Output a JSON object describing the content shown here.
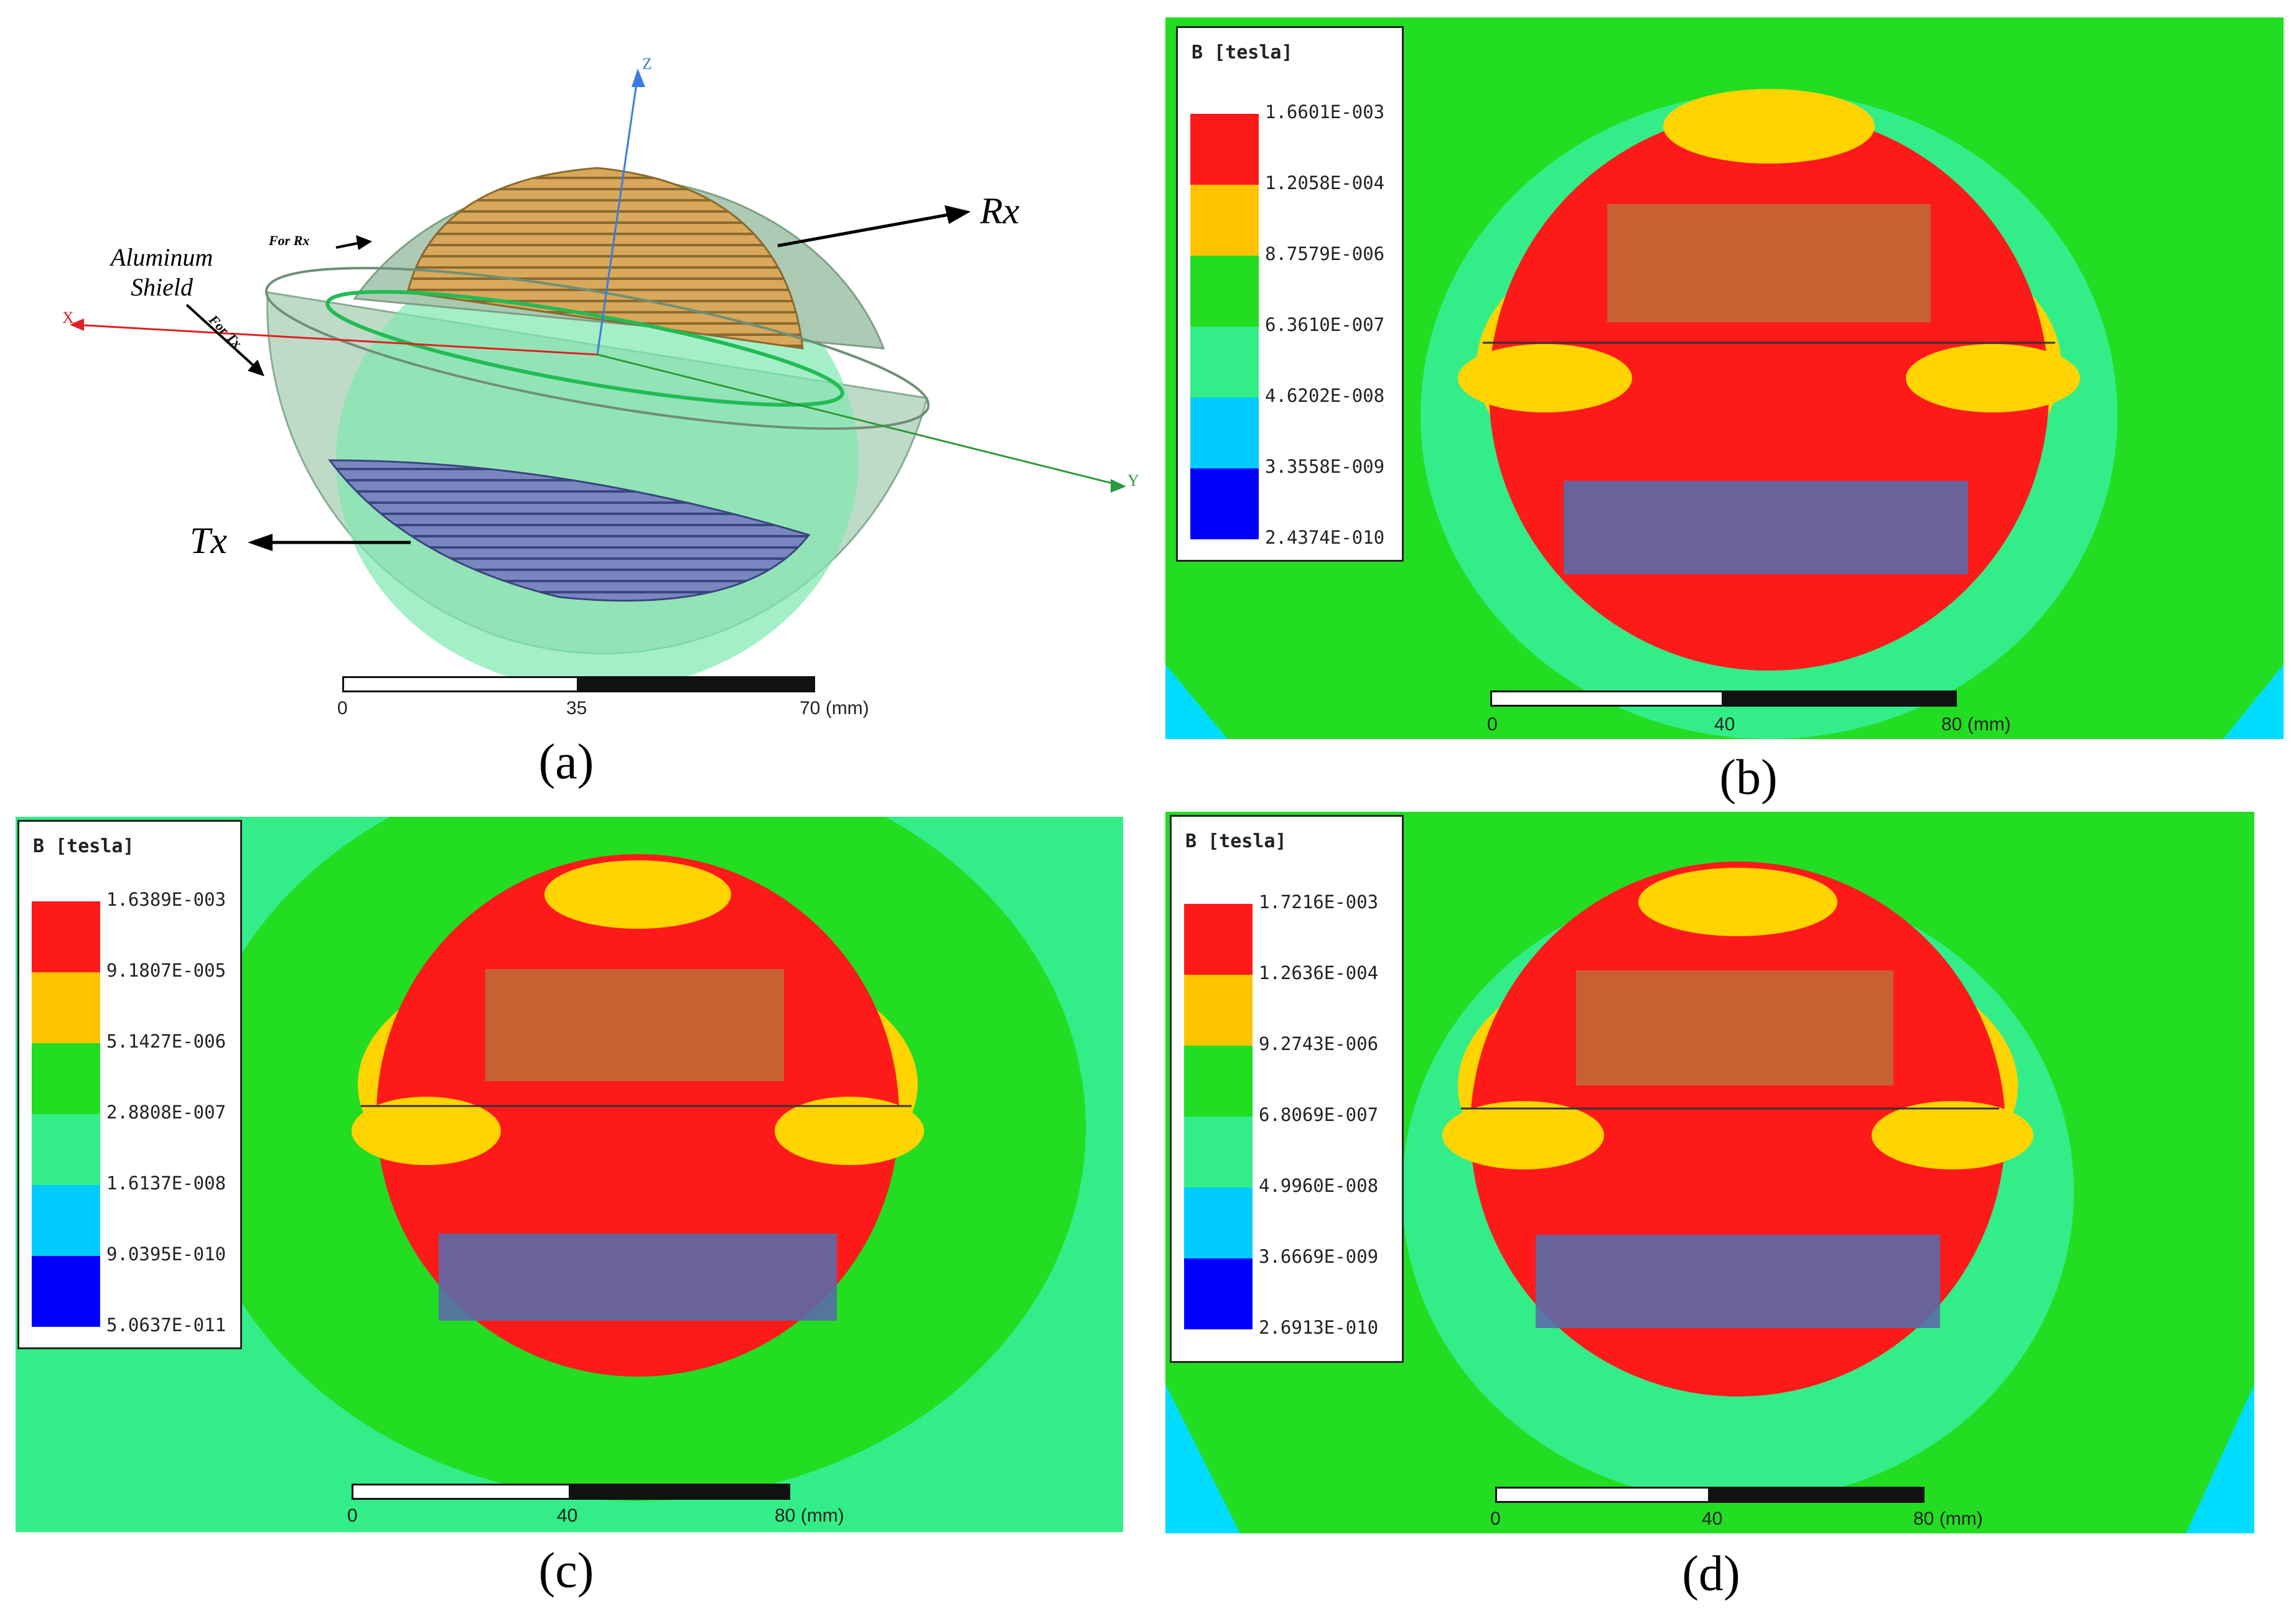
{
  "panel_a": {
    "caption": "(a)",
    "labels": {
      "rx": "Rx",
      "tx": "Tx",
      "shield": "Aluminum Shield",
      "for_rx": "For Rx",
      "for_tx": "For Tx",
      "axis_z": "Z",
      "axis_y": "Y",
      "axis_x": "X"
    },
    "scale": {
      "ticks": [
        "0",
        "35",
        "70 (mm)"
      ]
    }
  },
  "panel_b": {
    "caption": "(b)",
    "legend": {
      "title": "B [tesla]",
      "values": [
        "1.6601E-003",
        "1.2058E-004",
        "8.7579E-006",
        "6.3610E-007",
        "4.6202E-008",
        "3.3558E-009",
        "2.4374E-010"
      ]
    },
    "scale": {
      "ticks": [
        "0",
        "40",
        "80 (mm)"
      ]
    }
  },
  "panel_c": {
    "caption": "(c)",
    "legend": {
      "title": "B [tesla]",
      "values": [
        "1.6389E-003",
        "9.1807E-005",
        "5.1427E-006",
        "2.8808E-007",
        "1.6137E-008",
        "9.0395E-010",
        "5.0637E-011"
      ]
    },
    "scale": {
      "ticks": [
        "0",
        "40",
        "80 (mm)"
      ]
    }
  },
  "panel_d": {
    "caption": "(d)",
    "legend": {
      "title": "B [tesla]",
      "values": [
        "1.7216E-003",
        "1.2636E-004",
        "9.2743E-006",
        "6.8069E-007",
        "4.9960E-008",
        "3.6669E-009",
        "2.6913E-010"
      ]
    },
    "scale": {
      "ticks": [
        "0",
        "40",
        "80 (mm)"
      ]
    }
  },
  "colors": {
    "red": "#ff1a1a",
    "orange": "#ffc400",
    "green": "#22dd22",
    "light_green": "#33ee88",
    "cyan": "#00ccff",
    "blue": "#0000ff",
    "coil": "#5a6aa8",
    "shield": "#9ec9a8"
  }
}
